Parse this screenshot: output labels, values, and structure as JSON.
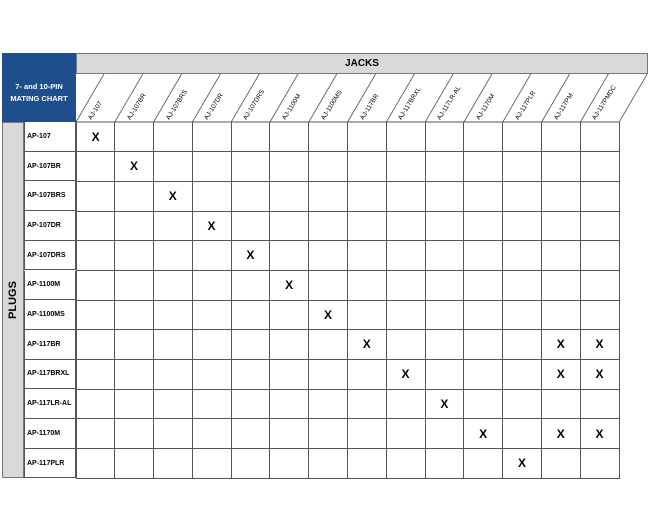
{
  "title": "7- and 10-PIN MATING CHART",
  "jacks_header": "JACKS",
  "plugs_header": "PLUGS",
  "mark": "X",
  "jacks": [
    "AJ-107",
    "AJ-107BR",
    "AJ-107BRS",
    "AJ-107DR",
    "AJ-107DRS",
    "AJ-1100M",
    "AJ-1100MS",
    "AJ-117BR",
    "AJ-117BRXL",
    "AJ-117LR-AL",
    "AJ-1170M",
    "AJ-117PLR",
    "AJ-117PM",
    "AJ-117PMDC"
  ],
  "plugs": [
    {
      "name": "AP-107",
      "mates": [
        "AJ-107"
      ]
    },
    {
      "name": "AP-107BR",
      "mates": [
        "AJ-107BR"
      ]
    },
    {
      "name": "AP-107BRS",
      "mates": [
        "AJ-107BRS"
      ]
    },
    {
      "name": "AP-107DR",
      "mates": [
        "AJ-107DR"
      ]
    },
    {
      "name": "AP-107DRS",
      "mates": [
        "AJ-107DRS"
      ]
    },
    {
      "name": "AP-1100M",
      "mates": [
        "AJ-1100M"
      ]
    },
    {
      "name": "AP-1100MS",
      "mates": [
        "AJ-1100MS"
      ]
    },
    {
      "name": "AP-117BR",
      "mates": [
        "AJ-117BR",
        "AJ-117PM",
        "AJ-117PMDC"
      ]
    },
    {
      "name": "AP-117BRXL",
      "mates": [
        "AJ-117BRXL",
        "AJ-117PM",
        "AJ-117PMDC"
      ]
    },
    {
      "name": "AP-117LR-AL",
      "mates": [
        "AJ-117LR-AL"
      ]
    },
    {
      "name": "AP-1170M",
      "mates": [
        "AJ-1170M",
        "AJ-117PM",
        "AJ-117PMDC"
      ]
    },
    {
      "name": "AP-117PLR",
      "mates": [
        "AJ-117PLR"
      ]
    }
  ],
  "colors": {
    "title_bg": "#1f4e8c",
    "header_bg": "#d9d9d9"
  }
}
